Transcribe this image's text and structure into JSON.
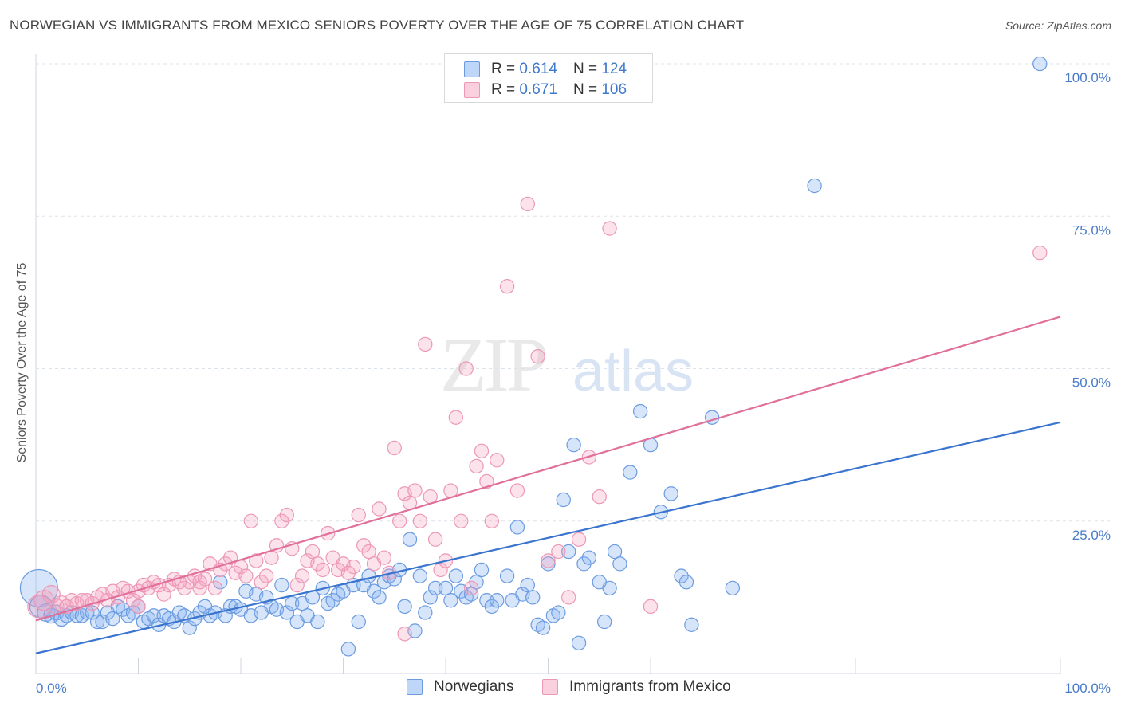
{
  "title": "NORWEGIAN VS IMMIGRANTS FROM MEXICO SENIORS POVERTY OVER THE AGE OF 75 CORRELATION CHART",
  "source": "Source: ZipAtlas.com",
  "watermark": {
    "zip": "ZIP",
    "atlas": "atlas"
  },
  "colors": {
    "blue": "#4a7cc9",
    "blue_fill": "rgba(137,180,240,0.35)",
    "blue_stroke": "#6b9be0",
    "blue_line": "#3a74cf",
    "pink_fill": "rgba(245,160,190,0.30)",
    "pink_stroke": "#ec98b6",
    "pink_line": "#e0709a",
    "grid": "#dde3ea"
  },
  "legend_top": [
    {
      "r_label": "R =",
      "r_value": "0.614",
      "n_label": "N =",
      "n_value": "124",
      "swatch": "blue"
    },
    {
      "r_label": "R =",
      "r_value": "0.671",
      "n_label": "N =",
      "n_value": "106",
      "swatch": "pink"
    }
  ],
  "chart_data": {
    "type": "scatter",
    "title": "NORWEGIAN VS IMMIGRANTS FROM MEXICO SENIORS POVERTY OVER THE AGE OF 75 CORRELATION CHART",
    "xlabel": "",
    "ylabel": "Seniors Poverty Over the Age of 75",
    "xlim": [
      0,
      100
    ],
    "ylim": [
      0,
      100
    ],
    "x_tick_labels": [
      "0.0%",
      "100.0%"
    ],
    "y_tick_labels": [
      "25.0%",
      "50.0%",
      "75.0%",
      "100.0%"
    ],
    "y_ticks": [
      25,
      50,
      75,
      100
    ],
    "grid": true,
    "legend_position": "bottom",
    "series": [
      {
        "name": "Norwegians",
        "color": "blue",
        "trend": {
          "x": [
            0,
            100
          ],
          "y": [
            3.3,
            41.2
          ]
        },
        "points": [
          [
            0.3,
            14,
            30
          ],
          [
            0.5,
            11,
            18
          ],
          [
            1,
            10,
            14
          ],
          [
            1.5,
            9.5,
            12
          ],
          [
            2,
            10,
            12
          ],
          [
            2.5,
            9,
            12
          ],
          [
            3,
            9.5,
            11
          ],
          [
            3.5,
            10,
            11
          ],
          [
            4,
            9.5,
            11
          ],
          [
            4.5,
            9.5,
            11
          ],
          [
            5,
            10,
            11
          ],
          [
            5.5,
            10,
            11
          ],
          [
            6,
            8.5,
            11
          ],
          [
            6.5,
            8.5,
            11
          ],
          [
            7,
            10,
            11
          ],
          [
            7.5,
            9,
            11
          ],
          [
            8,
            11,
            11
          ],
          [
            8.5,
            10.5,
            11
          ],
          [
            9,
            9.5,
            11
          ],
          [
            9.5,
            10,
            11
          ],
          [
            10,
            11,
            11
          ],
          [
            10.5,
            8.5,
            11
          ],
          [
            11,
            9,
            11
          ],
          [
            11.5,
            9.5,
            11
          ],
          [
            12,
            8,
            11
          ],
          [
            12.5,
            9.5,
            11
          ],
          [
            13,
            9,
            11
          ],
          [
            13.5,
            8.5,
            11
          ],
          [
            14,
            10,
            11
          ],
          [
            14.5,
            9.5,
            11
          ],
          [
            15,
            7.5,
            11
          ],
          [
            15.5,
            9,
            11
          ],
          [
            16,
            10,
            11
          ],
          [
            16.5,
            11,
            11
          ],
          [
            17,
            9.5,
            11
          ],
          [
            17.5,
            10,
            11
          ],
          [
            18,
            15,
            11
          ],
          [
            18.5,
            9.5,
            11
          ],
          [
            19,
            11,
            11
          ],
          [
            19.5,
            11,
            11
          ],
          [
            20,
            10.5,
            11
          ],
          [
            20.5,
            13.5,
            11
          ],
          [
            21,
            9.5,
            11
          ],
          [
            21.5,
            13,
            11
          ],
          [
            22,
            10,
            11
          ],
          [
            22.5,
            12.5,
            11
          ],
          [
            23,
            11,
            11
          ],
          [
            23.5,
            10.5,
            11
          ],
          [
            24,
            14.5,
            11
          ],
          [
            24.5,
            10,
            11
          ],
          [
            25,
            11.5,
            11
          ],
          [
            25.5,
            8.5,
            11
          ],
          [
            26,
            11.5,
            11
          ],
          [
            26.5,
            9.5,
            11
          ],
          [
            27,
            12.5,
            11
          ],
          [
            27.5,
            8.5,
            11
          ],
          [
            28,
            14,
            11
          ],
          [
            28.5,
            11.5,
            11
          ],
          [
            29,
            12,
            11
          ],
          [
            29.5,
            13,
            11
          ],
          [
            30,
            13.5,
            11
          ],
          [
            30.5,
            4,
            11
          ],
          [
            31,
            14.5,
            11
          ],
          [
            31.5,
            8.5,
            11
          ],
          [
            32,
            14.5,
            11
          ],
          [
            32.5,
            16,
            11
          ],
          [
            33,
            13.5,
            11
          ],
          [
            33.5,
            12.5,
            11
          ],
          [
            34,
            15,
            11
          ],
          [
            34.5,
            16,
            11
          ],
          [
            35,
            15.5,
            11
          ],
          [
            35.5,
            17,
            11
          ],
          [
            36,
            11,
            11
          ],
          [
            36.5,
            22,
            11
          ],
          [
            37,
            7,
            11
          ],
          [
            37.5,
            16,
            11
          ],
          [
            38,
            10,
            11
          ],
          [
            38.5,
            12.5,
            11
          ],
          [
            39,
            14,
            11
          ],
          [
            40,
            14,
            11
          ],
          [
            40.5,
            12,
            11
          ],
          [
            41,
            16,
            11
          ],
          [
            41.5,
            13.5,
            11
          ],
          [
            42,
            12.5,
            11
          ],
          [
            42.5,
            13,
            11
          ],
          [
            43,
            15,
            11
          ],
          [
            43.5,
            17,
            11
          ],
          [
            44,
            12,
            11
          ],
          [
            44.5,
            11,
            11
          ],
          [
            45,
            12,
            11
          ],
          [
            46,
            16,
            11
          ],
          [
            46.5,
            12,
            11
          ],
          [
            47,
            24,
            11
          ],
          [
            47.5,
            13,
            11
          ],
          [
            48,
            14.5,
            11
          ],
          [
            48.5,
            12.5,
            11
          ],
          [
            49,
            8,
            11
          ],
          [
            49.5,
            7.5,
            11
          ],
          [
            50,
            18,
            11
          ],
          [
            50.5,
            9.5,
            11
          ],
          [
            51,
            10,
            11
          ],
          [
            51.5,
            28.5,
            11
          ],
          [
            52,
            20,
            11
          ],
          [
            52.5,
            37.5,
            11
          ],
          [
            53,
            5,
            11
          ],
          [
            53.5,
            18,
            11
          ],
          [
            54,
            19,
            11
          ],
          [
            55,
            15,
            11
          ],
          [
            55.5,
            8.5,
            11
          ],
          [
            56,
            14,
            11
          ],
          [
            56.5,
            20,
            11
          ],
          [
            57,
            18,
            11
          ],
          [
            58,
            33,
            11
          ],
          [
            59,
            43,
            11
          ],
          [
            60,
            37.5,
            11
          ],
          [
            61,
            26.5,
            11
          ],
          [
            62,
            29.5,
            11
          ],
          [
            63,
            16,
            11
          ],
          [
            63.5,
            15,
            11
          ],
          [
            64,
            8,
            11
          ],
          [
            66,
            42,
            11
          ],
          [
            68,
            14,
            11
          ],
          [
            76,
            80,
            11
          ],
          [
            98,
            100,
            11
          ]
        ]
      },
      {
        "name": "Immigrants from Mexico",
        "color": "pink",
        "trend": {
          "x": [
            0,
            100
          ],
          "y": [
            8.7,
            58.5
          ]
        },
        "points": [
          [
            0.3,
            11,
            18
          ],
          [
            0.8,
            12,
            16
          ],
          [
            1.5,
            13,
            14
          ],
          [
            2,
            11,
            12
          ],
          [
            2.5,
            11.5,
            12
          ],
          [
            3,
            11,
            11
          ],
          [
            3.5,
            12,
            11
          ],
          [
            4,
            11.5,
            11
          ],
          [
            4.5,
            12,
            11
          ],
          [
            5,
            12,
            11
          ],
          [
            5.5,
            11.5,
            11
          ],
          [
            6,
            12.5,
            11
          ],
          [
            6.5,
            13,
            11
          ],
          [
            7,
            12,
            11
          ],
          [
            7.5,
            13.5,
            11
          ],
          [
            8,
            12.5,
            11
          ],
          [
            8.5,
            14,
            11
          ],
          [
            9,
            13.5,
            11
          ],
          [
            9.5,
            12,
            11
          ],
          [
            10,
            13.5,
            11
          ],
          [
            10.5,
            14.5,
            11
          ],
          [
            11,
            14,
            11
          ],
          [
            11.5,
            15,
            11
          ],
          [
            12,
            14.5,
            11
          ],
          [
            12.5,
            13,
            11
          ],
          [
            13,
            14.5,
            11
          ],
          [
            13.5,
            15.5,
            11
          ],
          [
            14,
            15,
            11
          ],
          [
            14.5,
            14,
            11
          ],
          [
            15,
            15,
            11
          ],
          [
            15.5,
            16,
            11
          ],
          [
            16,
            15,
            11
          ],
          [
            16.5,
            15.5,
            11
          ],
          [
            17,
            18,
            11
          ],
          [
            17.5,
            14,
            11
          ],
          [
            18,
            17,
            11
          ],
          [
            18.5,
            18,
            11
          ],
          [
            19,
            19,
            11
          ],
          [
            19.5,
            16.5,
            11
          ],
          [
            20,
            17.5,
            11
          ],
          [
            20.5,
            16,
            11
          ],
          [
            21,
            25,
            11
          ],
          [
            21.5,
            18.5,
            11
          ],
          [
            22,
            15,
            11
          ],
          [
            22.5,
            16,
            11
          ],
          [
            23,
            19,
            11
          ],
          [
            23.5,
            21,
            11
          ],
          [
            24,
            25,
            11
          ],
          [
            24.5,
            26,
            11
          ],
          [
            25,
            20.5,
            11
          ],
          [
            25.5,
            14.5,
            11
          ],
          [
            26,
            16,
            11
          ],
          [
            26.5,
            18.5,
            11
          ],
          [
            27,
            20,
            11
          ],
          [
            27.5,
            18,
            11
          ],
          [
            28,
            17,
            11
          ],
          [
            28.5,
            23,
            11
          ],
          [
            29,
            19,
            11
          ],
          [
            29.5,
            17,
            11
          ],
          [
            30,
            18,
            11
          ],
          [
            30.5,
            16.5,
            11
          ],
          [
            31,
            17.5,
            11
          ],
          [
            31.5,
            26,
            11
          ],
          [
            32,
            21,
            11
          ],
          [
            32.5,
            20,
            11
          ],
          [
            33,
            18,
            11
          ],
          [
            33.5,
            27,
            11
          ],
          [
            34,
            19,
            11
          ],
          [
            34.5,
            16.5,
            11
          ],
          [
            35,
            37,
            11
          ],
          [
            35.5,
            25,
            11
          ],
          [
            36,
            29.5,
            11
          ],
          [
            36.5,
            28,
            11
          ],
          [
            37,
            30,
            11
          ],
          [
            37.5,
            25,
            11
          ],
          [
            38,
            54,
            11
          ],
          [
            38.5,
            29,
            11
          ],
          [
            39,
            22,
            11
          ],
          [
            39.5,
            17,
            11
          ],
          [
            40,
            18.5,
            11
          ],
          [
            40.5,
            30,
            11
          ],
          [
            41,
            42,
            11
          ],
          [
            41.5,
            25,
            11
          ],
          [
            42,
            50,
            11
          ],
          [
            42.5,
            14,
            11
          ],
          [
            43,
            34,
            11
          ],
          [
            43.5,
            36.5,
            11
          ],
          [
            44,
            31.5,
            11
          ],
          [
            44.5,
            25,
            11
          ],
          [
            45,
            35,
            11
          ],
          [
            46,
            63.5,
            11
          ],
          [
            47,
            30,
            11
          ],
          [
            48,
            77,
            11
          ],
          [
            49,
            52,
            11
          ],
          [
            50,
            18.5,
            11
          ],
          [
            51,
            20,
            11
          ],
          [
            52,
            12.5,
            11
          ],
          [
            53,
            22,
            11
          ],
          [
            54,
            35.5,
            11
          ],
          [
            55,
            29,
            11
          ],
          [
            56,
            73,
            11
          ],
          [
            60,
            11,
            11
          ],
          [
            98,
            69,
            11
          ],
          [
            36,
            6.5,
            11
          ],
          [
            16,
            14,
            11
          ],
          [
            10,
            11,
            11
          ]
        ]
      }
    ]
  }
}
